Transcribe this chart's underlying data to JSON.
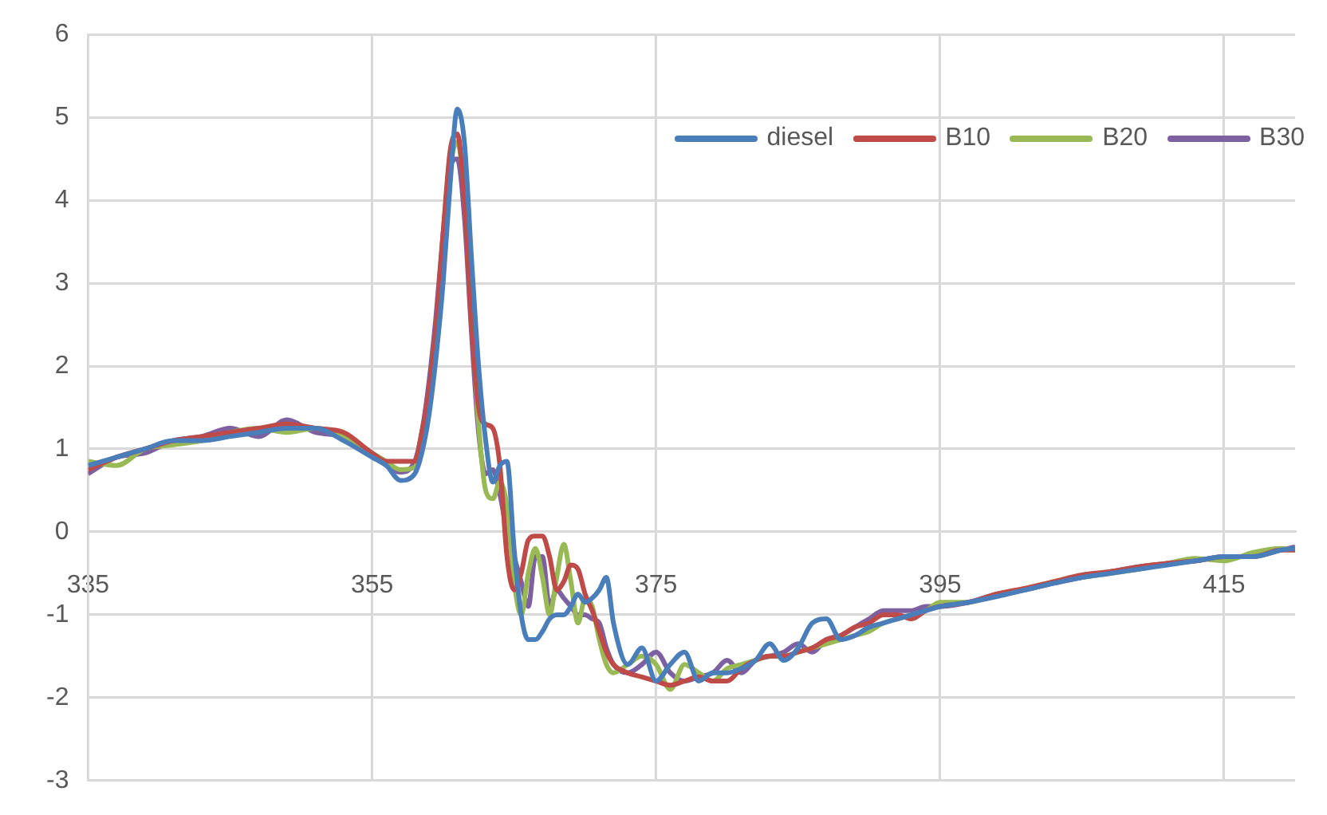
{
  "chart_data": {
    "type": "line",
    "x": [
      335,
      337,
      339,
      341,
      343,
      345,
      347,
      349,
      351,
      353,
      355,
      356,
      357,
      358,
      358.5,
      359,
      359.5,
      360,
      360.5,
      361,
      361.5,
      362,
      362.5,
      363,
      363.5,
      364,
      364.5,
      365,
      365.5,
      366,
      366.5,
      367,
      367.5,
      368,
      368.5,
      369,
      369.5,
      370,
      370.5,
      371,
      371.5,
      372,
      373,
      374,
      375,
      376,
      377,
      378,
      379,
      380,
      381,
      382,
      383,
      384,
      385,
      386,
      387,
      388,
      389,
      390,
      391,
      392,
      393,
      394,
      395,
      397,
      399,
      401,
      403,
      405,
      407,
      409,
      411,
      413,
      415,
      417,
      419,
      420
    ],
    "series": [
      {
        "name": "diesel",
        "color": "#4a7ebb",
        "values": [
          0.8,
          0.9,
          1.0,
          1.1,
          1.1,
          1.15,
          1.2,
          1.25,
          1.25,
          1.1,
          0.9,
          0.8,
          0.62,
          0.7,
          0.95,
          1.4,
          2.1,
          3.0,
          4.2,
          5.1,
          4.7,
          3.3,
          2.0,
          1.1,
          0.6,
          0.8,
          0.85,
          -0.2,
          -1.0,
          -1.3,
          -1.3,
          -1.2,
          -1.05,
          -1.0,
          -1.0,
          -0.9,
          -0.75,
          -0.85,
          -0.8,
          -0.7,
          -0.55,
          -1.1,
          -1.6,
          -1.4,
          -1.8,
          -1.6,
          -1.45,
          -1.8,
          -1.7,
          -1.7,
          -1.65,
          -1.55,
          -1.35,
          -1.55,
          -1.4,
          -1.1,
          -1.05,
          -1.3,
          -1.25,
          -1.15,
          -1.1,
          -1.05,
          -1.0,
          -0.95,
          -0.9,
          -0.85,
          -0.78,
          -0.7,
          -0.62,
          -0.55,
          -0.5,
          -0.45,
          -0.4,
          -0.35,
          -0.3,
          -0.3,
          -0.22,
          -0.2
        ]
      },
      {
        "name": "B10",
        "color": "#be4b48",
        "values": [
          0.75,
          0.9,
          1.0,
          1.1,
          1.15,
          1.2,
          1.25,
          1.3,
          1.25,
          1.2,
          0.95,
          0.85,
          0.85,
          0.85,
          1.2,
          1.7,
          2.5,
          3.6,
          4.6,
          4.8,
          4.0,
          2.5,
          1.5,
          1.3,
          1.25,
          0.8,
          -0.3,
          -0.7,
          -0.5,
          -0.1,
          -0.05,
          -0.05,
          -0.3,
          -0.7,
          -0.6,
          -0.4,
          -0.45,
          -0.75,
          -0.95,
          -1.2,
          -1.45,
          -1.6,
          -1.7,
          -1.75,
          -1.8,
          -1.85,
          -1.8,
          -1.75,
          -1.8,
          -1.8,
          -1.65,
          -1.55,
          -1.5,
          -1.5,
          -1.45,
          -1.4,
          -1.3,
          -1.25,
          -1.15,
          -1.1,
          -1.0,
          -1.0,
          -1.05,
          -0.95,
          -0.9,
          -0.85,
          -0.75,
          -0.68,
          -0.6,
          -0.52,
          -0.48,
          -0.42,
          -0.38,
          -0.35,
          -0.3,
          -0.3,
          -0.22,
          -0.22
        ]
      },
      {
        "name": "B20",
        "color": "#98b954",
        "values": [
          0.85,
          0.8,
          1.0,
          1.05,
          1.1,
          1.2,
          1.25,
          1.2,
          1.25,
          1.15,
          0.95,
          0.85,
          0.75,
          0.78,
          1.1,
          1.6,
          2.4,
          3.4,
          4.4,
          4.7,
          4.1,
          2.7,
          1.3,
          0.5,
          0.4,
          0.6,
          0.3,
          -0.6,
          -1.0,
          -0.5,
          -0.2,
          -0.55,
          -1.0,
          -0.55,
          -0.15,
          -0.6,
          -1.1,
          -0.8,
          -0.9,
          -1.3,
          -1.6,
          -1.7,
          -1.6,
          -1.5,
          -1.6,
          -1.9,
          -1.6,
          -1.7,
          -1.8,
          -1.65,
          -1.6,
          -1.55,
          -1.5,
          -1.5,
          -1.45,
          -1.4,
          -1.35,
          -1.3,
          -1.25,
          -1.2,
          -1.1,
          -1.05,
          -1.0,
          -0.95,
          -0.85,
          -0.85,
          -0.75,
          -0.7,
          -0.6,
          -0.55,
          -0.5,
          -0.45,
          -0.38,
          -0.32,
          -0.35,
          -0.25,
          -0.2,
          -0.22
        ]
      },
      {
        "name": "B30",
        "color": "#7d60a0",
        "values": [
          0.7,
          0.9,
          0.95,
          1.1,
          1.15,
          1.25,
          1.15,
          1.35,
          1.2,
          1.15,
          0.95,
          0.8,
          0.72,
          0.85,
          1.2,
          1.8,
          2.6,
          3.6,
          4.4,
          4.5,
          3.8,
          2.4,
          1.2,
          0.7,
          0.75,
          0.45,
          0.0,
          -0.3,
          -0.6,
          -0.9,
          -0.3,
          -0.3,
          -0.9,
          -0.7,
          -0.8,
          -0.9,
          -1.0,
          -1.0,
          -1.05,
          -1.1,
          -1.4,
          -1.6,
          -1.7,
          -1.6,
          -1.45,
          -1.7,
          -1.8,
          -1.75,
          -1.7,
          -1.55,
          -1.7,
          -1.55,
          -1.5,
          -1.45,
          -1.35,
          -1.45,
          -1.3,
          -1.25,
          -1.15,
          -1.05,
          -0.95,
          -0.95,
          -0.95,
          -0.9,
          -0.9,
          -0.85,
          -0.75,
          -0.7,
          -0.62,
          -0.55,
          -0.48,
          -0.42,
          -0.38,
          -0.35,
          -0.3,
          -0.3,
          -0.22,
          -0.18
        ]
      }
    ],
    "xlim": [
      335,
      420
    ],
    "xticks": [
      335,
      355,
      375,
      395,
      415
    ],
    "ylim": [
      -3,
      6
    ],
    "yticks": [
      -3,
      -2,
      -1,
      0,
      1,
      2,
      3,
      4,
      5,
      6
    ],
    "grid": true,
    "legend": "top right",
    "marker": "none"
  }
}
